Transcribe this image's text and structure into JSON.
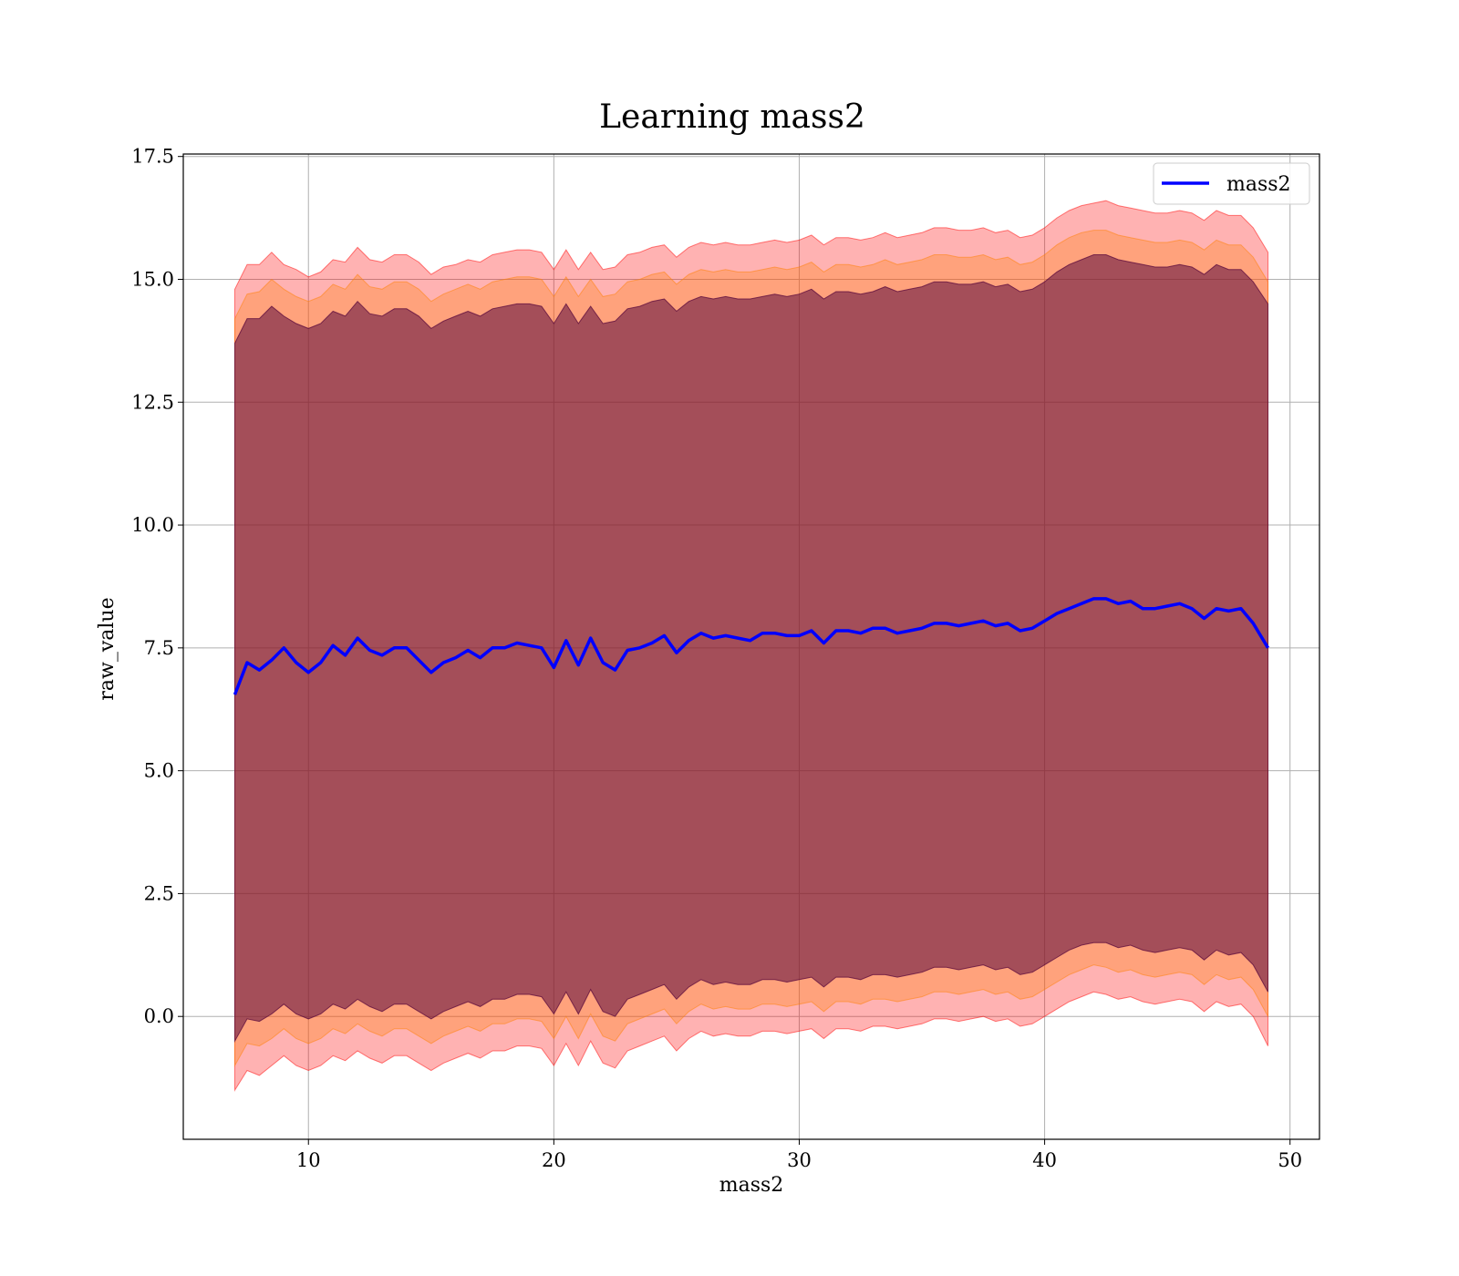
{
  "chart_data": {
    "type": "line",
    "title": "Learning mass2",
    "xlabel": "mass2",
    "ylabel": "raw_value",
    "xlim": [
      4.9,
      51.2
    ],
    "ylim": [
      -2.5,
      17.55
    ],
    "xticks": [
      10,
      20,
      30,
      40,
      50
    ],
    "xtick_labels": [
      "10",
      "20",
      "30",
      "40",
      "50"
    ],
    "yticks": [
      0.0,
      2.5,
      5.0,
      7.5,
      10.0,
      12.5,
      15.0,
      17.5
    ],
    "ytick_labels": [
      "0.0",
      "2.5",
      "5.0",
      "7.5",
      "10.0",
      "12.5",
      "15.0",
      "17.5"
    ],
    "grid": true,
    "legend": {
      "placement": "top-right",
      "entries": [
        {
          "label": "mass2",
          "color": "#0000ff"
        }
      ]
    },
    "series": [
      {
        "name": "mass2",
        "color": "#0000ff",
        "x": [
          7.0,
          7.5,
          8.0,
          8.5,
          9.0,
          9.5,
          10.0,
          10.5,
          11.0,
          11.5,
          12.0,
          12.5,
          13.0,
          13.5,
          14.0,
          14.5,
          15.0,
          15.5,
          16.0,
          16.5,
          17.0,
          17.5,
          18.0,
          18.5,
          19.0,
          19.5,
          20.0,
          20.5,
          21.0,
          21.5,
          22.0,
          22.5,
          23.0,
          23.5,
          24.0,
          24.5,
          25.0,
          25.5,
          26.0,
          26.5,
          27.0,
          27.5,
          28.0,
          28.5,
          29.0,
          29.5,
          30.0,
          30.5,
          31.0,
          31.5,
          32.0,
          32.5,
          33.0,
          33.5,
          34.0,
          34.5,
          35.0,
          35.5,
          36.0,
          36.5,
          37.0,
          37.5,
          38.0,
          38.5,
          39.0,
          39.5,
          40.0,
          40.5,
          41.0,
          41.5,
          42.0,
          42.5,
          43.0,
          43.5,
          44.0,
          44.5,
          45.0,
          45.5,
          46.0,
          46.5,
          47.0,
          47.5,
          48.0,
          48.5,
          49.1
        ],
        "y": [
          6.55,
          7.2,
          7.05,
          7.25,
          7.5,
          7.2,
          7.0,
          7.2,
          7.55,
          7.35,
          7.7,
          7.45,
          7.35,
          7.5,
          7.5,
          7.25,
          7.0,
          7.2,
          7.3,
          7.45,
          7.3,
          7.5,
          7.5,
          7.6,
          7.55,
          7.5,
          7.1,
          7.65,
          7.15,
          7.7,
          7.2,
          7.05,
          7.45,
          7.5,
          7.6,
          7.75,
          7.4,
          7.65,
          7.8,
          7.7,
          7.75,
          7.7,
          7.65,
          7.8,
          7.8,
          7.75,
          7.75,
          7.85,
          7.6,
          7.85,
          7.85,
          7.8,
          7.9,
          7.9,
          7.8,
          7.85,
          7.9,
          8.0,
          8.0,
          7.95,
          8.0,
          8.05,
          7.95,
          8.0,
          7.85,
          7.9,
          8.05,
          8.2,
          8.3,
          8.4,
          8.5,
          8.5,
          8.4,
          8.45,
          8.3,
          8.3,
          8.35,
          8.4,
          8.3,
          8.1,
          8.3,
          8.25,
          8.3,
          8.0,
          7.5
        ]
      }
    ],
    "bands": [
      {
        "color": "#ff0000",
        "opacity": 0.3,
        "upper": [
          14.8,
          15.3,
          15.3,
          15.55,
          15.3,
          15.2,
          15.05,
          15.15,
          15.4,
          15.35,
          15.65,
          15.4,
          15.35,
          15.5,
          15.5,
          15.35,
          15.1,
          15.25,
          15.3,
          15.4,
          15.35,
          15.5,
          15.55,
          15.6,
          15.6,
          15.55,
          15.2,
          15.6,
          15.2,
          15.55,
          15.2,
          15.25,
          15.5,
          15.55,
          15.65,
          15.7,
          15.45,
          15.65,
          15.75,
          15.7,
          15.75,
          15.7,
          15.7,
          15.75,
          15.8,
          15.75,
          15.8,
          15.9,
          15.7,
          15.85,
          15.85,
          15.8,
          15.85,
          15.95,
          15.85,
          15.9,
          15.95,
          16.05,
          16.05,
          16.0,
          16.0,
          16.05,
          15.95,
          16.0,
          15.85,
          15.9,
          16.05,
          16.25,
          16.4,
          16.5,
          16.55,
          16.6,
          16.5,
          16.45,
          16.4,
          16.35,
          16.35,
          16.4,
          16.35,
          16.2,
          16.4,
          16.3,
          16.3,
          16.05,
          15.55
        ],
        "lower": [
          -1.5,
          -1.1,
          -1.2,
          -1.0,
          -0.8,
          -1.0,
          -1.1,
          -1.0,
          -0.8,
          -0.9,
          -0.7,
          -0.85,
          -0.95,
          -0.8,
          -0.8,
          -0.95,
          -1.1,
          -0.95,
          -0.85,
          -0.75,
          -0.85,
          -0.7,
          -0.7,
          -0.6,
          -0.6,
          -0.65,
          -1.0,
          -0.55,
          -1.0,
          -0.5,
          -0.95,
          -1.05,
          -0.7,
          -0.6,
          -0.5,
          -0.4,
          -0.7,
          -0.45,
          -0.3,
          -0.4,
          -0.35,
          -0.4,
          -0.4,
          -0.3,
          -0.3,
          -0.35,
          -0.3,
          -0.25,
          -0.45,
          -0.25,
          -0.25,
          -0.3,
          -0.2,
          -0.2,
          -0.25,
          -0.2,
          -0.15,
          -0.05,
          -0.05,
          -0.1,
          -0.05,
          0.0,
          -0.1,
          -0.05,
          -0.2,
          -0.15,
          0.0,
          0.15,
          0.3,
          0.4,
          0.5,
          0.45,
          0.35,
          0.4,
          0.3,
          0.25,
          0.3,
          0.35,
          0.3,
          0.1,
          0.3,
          0.2,
          0.25,
          0.0,
          -0.6
        ]
      },
      {
        "color": "#ff7f00",
        "opacity": 0.3,
        "upper": [
          14.2,
          14.7,
          14.75,
          15.0,
          14.8,
          14.65,
          14.55,
          14.65,
          14.9,
          14.8,
          15.1,
          14.85,
          14.8,
          14.95,
          14.95,
          14.8,
          14.55,
          14.7,
          14.8,
          14.9,
          14.8,
          14.95,
          15.0,
          15.05,
          15.05,
          15.0,
          14.65,
          15.05,
          14.65,
          15.0,
          14.65,
          14.7,
          14.95,
          15.0,
          15.1,
          15.15,
          14.9,
          15.1,
          15.2,
          15.15,
          15.2,
          15.15,
          15.15,
          15.2,
          15.25,
          15.2,
          15.25,
          15.35,
          15.15,
          15.3,
          15.3,
          15.25,
          15.3,
          15.4,
          15.3,
          15.35,
          15.4,
          15.5,
          15.5,
          15.45,
          15.45,
          15.5,
          15.4,
          15.45,
          15.3,
          15.35,
          15.5,
          15.7,
          15.85,
          15.95,
          16.0,
          16.0,
          15.9,
          15.85,
          15.8,
          15.75,
          15.75,
          15.8,
          15.75,
          15.6,
          15.8,
          15.7,
          15.7,
          15.45,
          14.95
        ],
        "lower": [
          -1.0,
          -0.55,
          -0.6,
          -0.45,
          -0.25,
          -0.45,
          -0.55,
          -0.45,
          -0.25,
          -0.35,
          -0.15,
          -0.3,
          -0.4,
          -0.25,
          -0.25,
          -0.4,
          -0.55,
          -0.4,
          -0.3,
          -0.2,
          -0.3,
          -0.15,
          -0.15,
          -0.05,
          -0.05,
          -0.1,
          -0.45,
          0.0,
          -0.45,
          0.05,
          -0.4,
          -0.5,
          -0.15,
          -0.05,
          0.05,
          0.15,
          -0.15,
          0.1,
          0.25,
          0.15,
          0.2,
          0.15,
          0.15,
          0.25,
          0.25,
          0.2,
          0.25,
          0.3,
          0.1,
          0.3,
          0.3,
          0.25,
          0.35,
          0.35,
          0.3,
          0.35,
          0.4,
          0.5,
          0.5,
          0.45,
          0.5,
          0.55,
          0.45,
          0.5,
          0.35,
          0.4,
          0.55,
          0.7,
          0.85,
          0.95,
          1.05,
          1.0,
          0.9,
          0.95,
          0.85,
          0.8,
          0.85,
          0.9,
          0.85,
          0.65,
          0.85,
          0.75,
          0.8,
          0.55,
          0.0
        ]
      },
      {
        "color": "#5a0a3c",
        "opacity": 0.55,
        "upper": [
          13.7,
          14.2,
          14.2,
          14.45,
          14.25,
          14.1,
          14.0,
          14.1,
          14.35,
          14.25,
          14.55,
          14.3,
          14.25,
          14.4,
          14.4,
          14.25,
          14.0,
          14.15,
          14.25,
          14.35,
          14.25,
          14.4,
          14.45,
          14.5,
          14.5,
          14.45,
          14.1,
          14.5,
          14.1,
          14.45,
          14.1,
          14.15,
          14.4,
          14.45,
          14.55,
          14.6,
          14.35,
          14.55,
          14.65,
          14.6,
          14.65,
          14.6,
          14.6,
          14.65,
          14.7,
          14.65,
          14.7,
          14.8,
          14.6,
          14.75,
          14.75,
          14.7,
          14.75,
          14.85,
          14.75,
          14.8,
          14.85,
          14.95,
          14.95,
          14.9,
          14.9,
          14.95,
          14.85,
          14.9,
          14.75,
          14.8,
          14.95,
          15.15,
          15.3,
          15.4,
          15.5,
          15.5,
          15.4,
          15.35,
          15.3,
          15.25,
          15.25,
          15.3,
          15.25,
          15.1,
          15.3,
          15.2,
          15.2,
          14.95,
          14.5
        ],
        "lower": [
          -0.5,
          -0.05,
          -0.1,
          0.05,
          0.25,
          0.05,
          -0.05,
          0.05,
          0.25,
          0.15,
          0.35,
          0.2,
          0.1,
          0.25,
          0.25,
          0.1,
          -0.05,
          0.1,
          0.2,
          0.3,
          0.2,
          0.35,
          0.35,
          0.45,
          0.45,
          0.4,
          0.05,
          0.5,
          0.05,
          0.55,
          0.1,
          0.0,
          0.35,
          0.45,
          0.55,
          0.65,
          0.35,
          0.6,
          0.75,
          0.65,
          0.7,
          0.65,
          0.65,
          0.75,
          0.75,
          0.7,
          0.75,
          0.8,
          0.6,
          0.8,
          0.8,
          0.75,
          0.85,
          0.85,
          0.8,
          0.85,
          0.9,
          1.0,
          1.0,
          0.95,
          1.0,
          1.05,
          0.95,
          1.0,
          0.85,
          0.9,
          1.05,
          1.2,
          1.35,
          1.45,
          1.5,
          1.5,
          1.4,
          1.45,
          1.35,
          1.3,
          1.35,
          1.4,
          1.35,
          1.15,
          1.35,
          1.25,
          1.3,
          1.05,
          0.5
        ]
      }
    ]
  }
}
